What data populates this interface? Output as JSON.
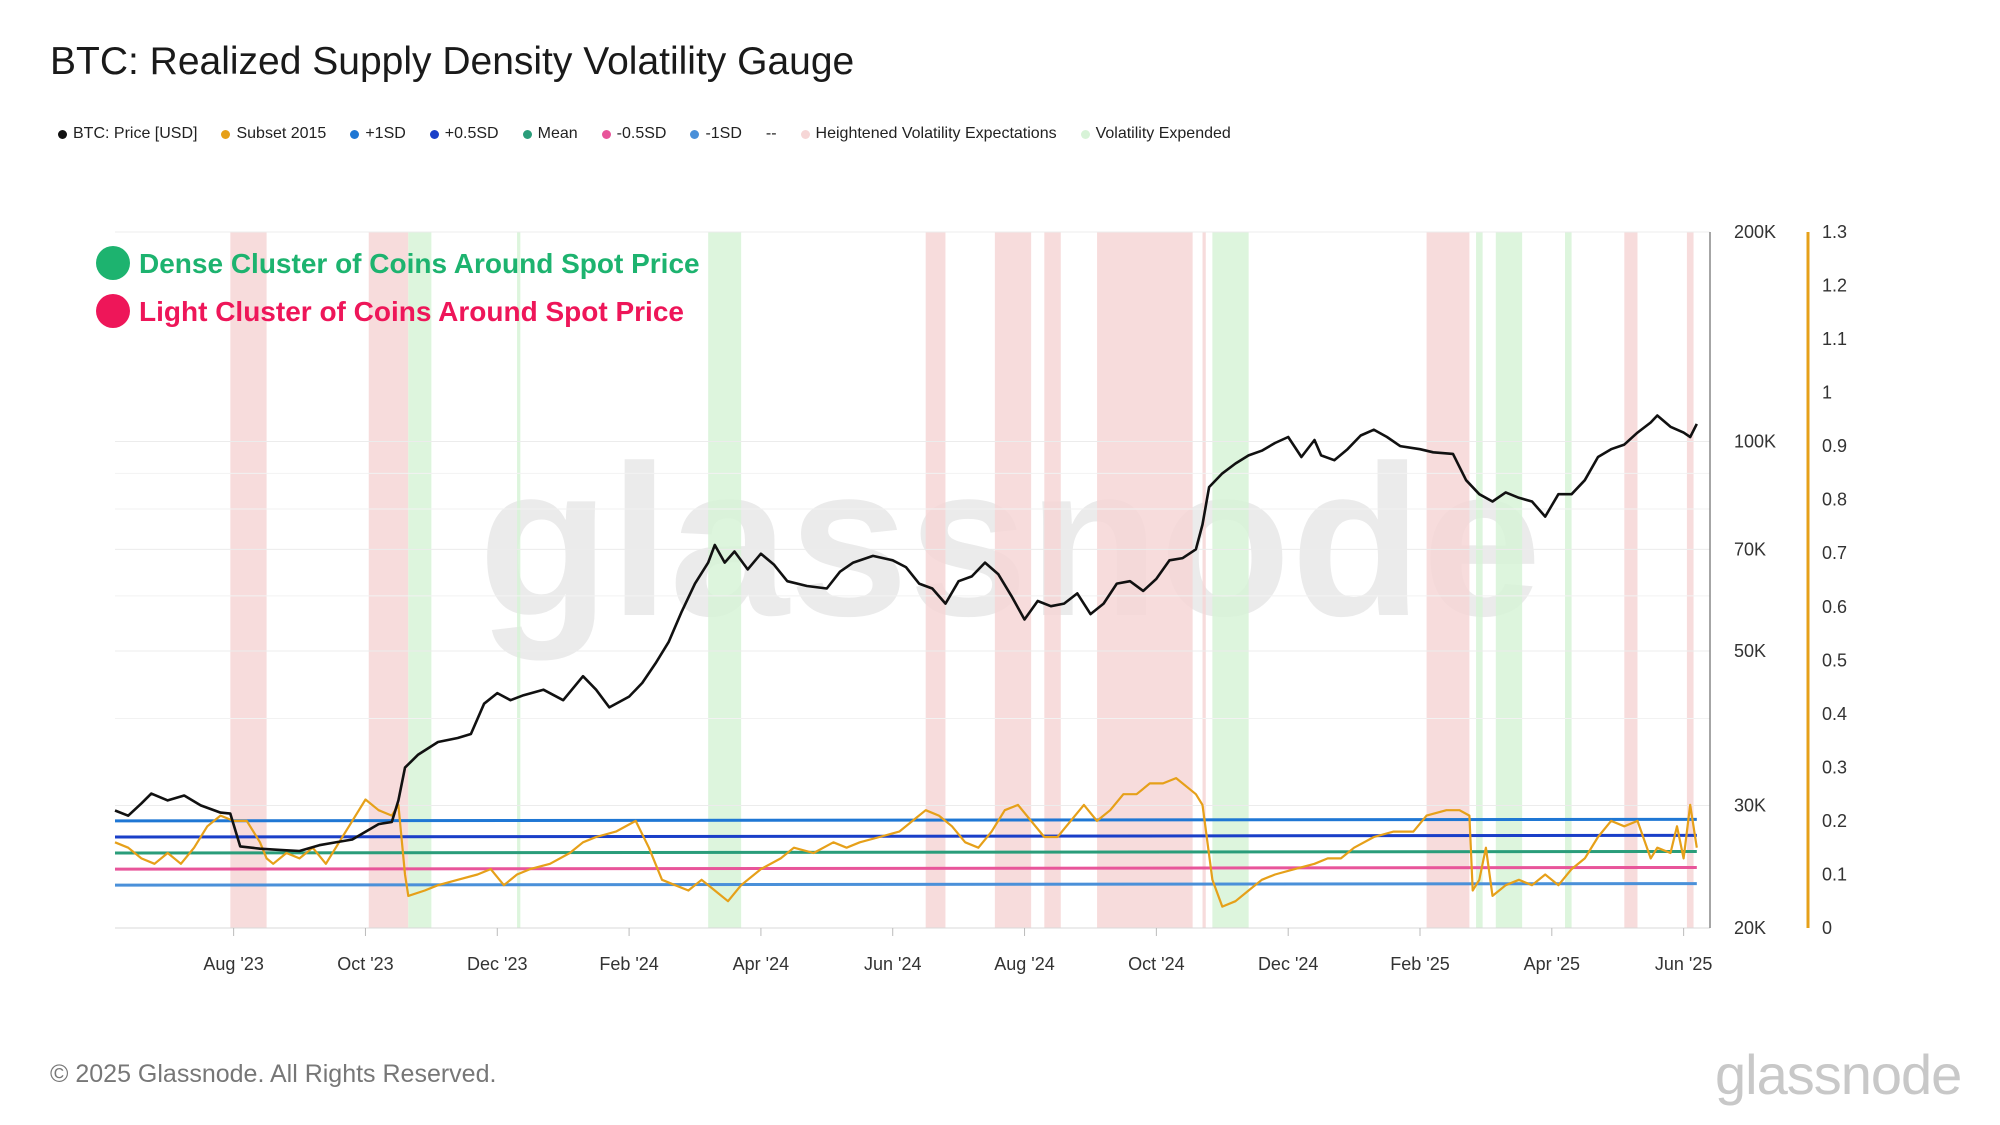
{
  "title": "BTC: Realized Supply Density Volatility Gauge",
  "legend": [
    {
      "label": "BTC: Price [USD]",
      "color": "#111111"
    },
    {
      "label": "Subset 2015",
      "color": "#e6a019"
    },
    {
      "label": "+1SD",
      "color": "#1f77d4"
    },
    {
      "label": "+0.5SD",
      "color": "#1a3fc8"
    },
    {
      "label": "Mean",
      "color": "#2a9d7a"
    },
    {
      "label": "-0.5SD",
      "color": "#e8559a"
    },
    {
      "label": "-1SD",
      "color": "#4a90d9"
    },
    {
      "label": "--",
      "color": ""
    },
    {
      "label": "Heightened Volatility Expectations",
      "color": "#f6d6d6"
    },
    {
      "label": "Volatility Expended",
      "color": "#d7f3d7"
    }
  ],
  "annotations": [
    {
      "text": "Dense Cluster of Coins Around Spot Price",
      "color": "#1db36f"
    },
    {
      "text": "Light Cluster of Coins Around Spot Price",
      "color": "#ee1659"
    }
  ],
  "footer": "© 2025 Glassnode. All Rights Reserved.",
  "brand": "glassnode",
  "watermark": "glassnode",
  "chart_data": {
    "type": "line",
    "x_ticks": [
      "Aug '23",
      "Oct '23",
      "Dec '23",
      "Feb '24",
      "Apr '24",
      "Jun '24",
      "Aug '24",
      "Oct '24",
      "Dec '24",
      "Feb '25",
      "Apr '25",
      "Jun '25"
    ],
    "x_tick_pos": [
      0.5,
      2.5,
      4.5,
      6.5,
      8.5,
      10.5,
      12.5,
      14.5,
      16.5,
      18.5,
      20.5,
      22.5
    ],
    "xlim": [
      -1.3,
      22.9
    ],
    "y_left": {
      "scale": "log",
      "min": 20000,
      "max": 200000,
      "ticks": [
        20000,
        30000,
        50000,
        70000,
        100000,
        200000
      ],
      "tick_labels": [
        "20K",
        "30K",
        "50K",
        "70K",
        "100K",
        "200K"
      ]
    },
    "y_right": {
      "min": 0,
      "max": 1.3,
      "ticks": [
        0,
        0.1,
        0.2,
        0.3,
        0.4,
        0.5,
        0.6,
        0.7,
        0.8,
        0.9,
        1,
        1.1,
        1.2,
        1.3
      ],
      "tick_labels": [
        "0",
        "0.1",
        "0.2",
        "0.3",
        "0.4",
        "0.5",
        "0.6",
        "0.7",
        "0.8",
        "0.9",
        "1",
        "1.1",
        "1.2",
        "1.3"
      ]
    },
    "sd_lines": [
      {
        "name": "+1SD",
        "y0": 0.2,
        "y1": 0.203,
        "color": "#1f77d4"
      },
      {
        "name": "+0.5SD",
        "y0": 0.17,
        "y1": 0.173,
        "color": "#1a3fc8"
      },
      {
        "name": "Mean",
        "y0": 0.14,
        "y1": 0.143,
        "color": "#2a9d7a"
      },
      {
        "name": "-0.5SD",
        "y0": 0.11,
        "y1": 0.113,
        "color": "#e8559a"
      },
      {
        "name": "-1SD",
        "y0": 0.08,
        "y1": 0.083,
        "color": "#4a90d9"
      }
    ],
    "bands": [
      {
        "kind": "heightened",
        "x0": 0.45,
        "x1": 1.0
      },
      {
        "kind": "heightened",
        "x0": 2.55,
        "x1": 3.15
      },
      {
        "kind": "expended",
        "x0": 3.15,
        "x1": 3.5
      },
      {
        "kind": "expended",
        "x0": 4.8,
        "x1": 4.85
      },
      {
        "kind": "expended",
        "x0": 7.7,
        "x1": 8.2
      },
      {
        "kind": "heightened",
        "x0": 11.0,
        "x1": 11.3
      },
      {
        "kind": "heightened",
        "x0": 12.05,
        "x1": 12.6
      },
      {
        "kind": "heightened",
        "x0": 12.8,
        "x1": 13.05
      },
      {
        "kind": "heightened",
        "x0": 13.6,
        "x1": 15.05
      },
      {
        "kind": "heightened",
        "x0": 15.2,
        "x1": 15.25
      },
      {
        "kind": "expended",
        "x0": 15.35,
        "x1": 15.9
      },
      {
        "kind": "heightened",
        "x0": 18.6,
        "x1": 19.25
      },
      {
        "kind": "expended",
        "x0": 19.35,
        "x1": 19.45
      },
      {
        "kind": "expended",
        "x0": 19.65,
        "x1": 20.05
      },
      {
        "kind": "expended",
        "x0": 20.7,
        "x1": 20.8
      },
      {
        "kind": "heightened",
        "x0": 21.6,
        "x1": 21.8
      },
      {
        "kind": "heightened",
        "x0": 22.55,
        "x1": 22.65
      }
    ],
    "band_colors": {
      "heightened": "#f6d6d6",
      "expended": "#d7f3d7"
    },
    "series": [
      {
        "name": "BTC: Price [USD]",
        "axis": "left",
        "color": "#111111",
        "points": [
          [
            -1.3,
            29500
          ],
          [
            -1.1,
            29000
          ],
          [
            -0.9,
            30200
          ],
          [
            -0.75,
            31200
          ],
          [
            -0.5,
            30500
          ],
          [
            -0.25,
            31000
          ],
          [
            0.0,
            30000
          ],
          [
            0.3,
            29300
          ],
          [
            0.45,
            29200
          ],
          [
            0.6,
            26200
          ],
          [
            0.9,
            26000
          ],
          [
            1.2,
            25900
          ],
          [
            1.5,
            25800
          ],
          [
            1.8,
            26300
          ],
          [
            2.0,
            26500
          ],
          [
            2.3,
            26800
          ],
          [
            2.5,
            27500
          ],
          [
            2.7,
            28200
          ],
          [
            2.9,
            28400
          ],
          [
            3.0,
            30500
          ],
          [
            3.1,
            34000
          ],
          [
            3.3,
            35500
          ],
          [
            3.6,
            37000
          ],
          [
            3.9,
            37500
          ],
          [
            4.1,
            38000
          ],
          [
            4.3,
            42000
          ],
          [
            4.5,
            43500
          ],
          [
            4.7,
            42500
          ],
          [
            4.9,
            43200
          ],
          [
            5.2,
            44000
          ],
          [
            5.5,
            42500
          ],
          [
            5.8,
            46000
          ],
          [
            6.0,
            44000
          ],
          [
            6.2,
            41500
          ],
          [
            6.5,
            43000
          ],
          [
            6.7,
            45000
          ],
          [
            6.9,
            48000
          ],
          [
            7.1,
            51500
          ],
          [
            7.3,
            57000
          ],
          [
            7.5,
            62500
          ],
          [
            7.7,
            67000
          ],
          [
            7.8,
            71000
          ],
          [
            7.95,
            67000
          ],
          [
            8.1,
            69500
          ],
          [
            8.3,
            65500
          ],
          [
            8.5,
            69000
          ],
          [
            8.7,
            66500
          ],
          [
            8.9,
            63000
          ],
          [
            9.2,
            62000
          ],
          [
            9.5,
            61500
          ],
          [
            9.7,
            65000
          ],
          [
            9.9,
            67000
          ],
          [
            10.2,
            68500
          ],
          [
            10.5,
            67500
          ],
          [
            10.7,
            66000
          ],
          [
            10.9,
            62500
          ],
          [
            11.1,
            61500
          ],
          [
            11.3,
            58500
          ],
          [
            11.5,
            63000
          ],
          [
            11.7,
            64000
          ],
          [
            11.9,
            67000
          ],
          [
            12.1,
            64500
          ],
          [
            12.3,
            60000
          ],
          [
            12.5,
            55500
          ],
          [
            12.7,
            59000
          ],
          [
            12.9,
            58000
          ],
          [
            13.1,
            58500
          ],
          [
            13.3,
            60500
          ],
          [
            13.5,
            56500
          ],
          [
            13.7,
            58500
          ],
          [
            13.9,
            62500
          ],
          [
            14.1,
            63000
          ],
          [
            14.3,
            61000
          ],
          [
            14.5,
            63500
          ],
          [
            14.7,
            67500
          ],
          [
            14.9,
            68000
          ],
          [
            15.1,
            70000
          ],
          [
            15.2,
            76000
          ],
          [
            15.3,
            86000
          ],
          [
            15.5,
            90000
          ],
          [
            15.7,
            93000
          ],
          [
            15.9,
            95500
          ],
          [
            16.1,
            97000
          ],
          [
            16.3,
            99500
          ],
          [
            16.5,
            101500
          ],
          [
            16.7,
            95000
          ],
          [
            16.9,
            100500
          ],
          [
            17.0,
            95500
          ],
          [
            17.2,
            94000
          ],
          [
            17.4,
            97500
          ],
          [
            17.6,
            102000
          ],
          [
            17.8,
            104000
          ],
          [
            18.0,
            101500
          ],
          [
            18.2,
            98500
          ],
          [
            18.5,
            97500
          ],
          [
            18.7,
            96500
          ],
          [
            19.0,
            96000
          ],
          [
            19.2,
            88000
          ],
          [
            19.4,
            84000
          ],
          [
            19.6,
            82000
          ],
          [
            19.8,
            84500
          ],
          [
            20.0,
            83000
          ],
          [
            20.2,
            82000
          ],
          [
            20.4,
            78000
          ],
          [
            20.6,
            84000
          ],
          [
            20.8,
            84000
          ],
          [
            21.0,
            88000
          ],
          [
            21.2,
            95000
          ],
          [
            21.4,
            97500
          ],
          [
            21.6,
            99000
          ],
          [
            21.8,
            103000
          ],
          [
            22.0,
            106500
          ],
          [
            22.1,
            109000
          ],
          [
            22.3,
            105000
          ],
          [
            22.5,
            103000
          ],
          [
            22.6,
            101500
          ],
          [
            22.7,
            106000
          ]
        ]
      },
      {
        "name": "Subset 2015",
        "axis": "right",
        "color": "#e6a019",
        "points": [
          [
            -1.3,
            0.16
          ],
          [
            -1.1,
            0.15
          ],
          [
            -0.9,
            0.13
          ],
          [
            -0.7,
            0.12
          ],
          [
            -0.5,
            0.14
          ],
          [
            -0.3,
            0.12
          ],
          [
            -0.1,
            0.15
          ],
          [
            0.1,
            0.19
          ],
          [
            0.3,
            0.21
          ],
          [
            0.5,
            0.2
          ],
          [
            0.7,
            0.2
          ],
          [
            0.9,
            0.16
          ],
          [
            1.0,
            0.13
          ],
          [
            1.1,
            0.12
          ],
          [
            1.3,
            0.14
          ],
          [
            1.5,
            0.13
          ],
          [
            1.7,
            0.15
          ],
          [
            1.9,
            0.12
          ],
          [
            2.1,
            0.16
          ],
          [
            2.3,
            0.2
          ],
          [
            2.5,
            0.24
          ],
          [
            2.7,
            0.22
          ],
          [
            2.9,
            0.21
          ],
          [
            3.0,
            0.23
          ],
          [
            3.1,
            0.1
          ],
          [
            3.15,
            0.06
          ],
          [
            3.4,
            0.07
          ],
          [
            3.6,
            0.08
          ],
          [
            3.9,
            0.09
          ],
          [
            4.2,
            0.1
          ],
          [
            4.4,
            0.11
          ],
          [
            4.6,
            0.08
          ],
          [
            4.8,
            0.1
          ],
          [
            5.0,
            0.11
          ],
          [
            5.3,
            0.12
          ],
          [
            5.6,
            0.14
          ],
          [
            5.8,
            0.16
          ],
          [
            6.0,
            0.17
          ],
          [
            6.3,
            0.18
          ],
          [
            6.6,
            0.2
          ],
          [
            6.8,
            0.15
          ],
          [
            7.0,
            0.09
          ],
          [
            7.2,
            0.08
          ],
          [
            7.4,
            0.07
          ],
          [
            7.6,
            0.09
          ],
          [
            7.8,
            0.07
          ],
          [
            8.0,
            0.05
          ],
          [
            8.2,
            0.08
          ],
          [
            8.5,
            0.11
          ],
          [
            8.8,
            0.13
          ],
          [
            9.0,
            0.15
          ],
          [
            9.3,
            0.14
          ],
          [
            9.6,
            0.16
          ],
          [
            9.8,
            0.15
          ],
          [
            10.0,
            0.16
          ],
          [
            10.3,
            0.17
          ],
          [
            10.6,
            0.18
          ],
          [
            10.8,
            0.2
          ],
          [
            11.0,
            0.22
          ],
          [
            11.2,
            0.21
          ],
          [
            11.4,
            0.19
          ],
          [
            11.6,
            0.16
          ],
          [
            11.8,
            0.15
          ],
          [
            12.0,
            0.18
          ],
          [
            12.2,
            0.22
          ],
          [
            12.4,
            0.23
          ],
          [
            12.6,
            0.2
          ],
          [
            12.8,
            0.17
          ],
          [
            13.0,
            0.17
          ],
          [
            13.2,
            0.2
          ],
          [
            13.4,
            0.23
          ],
          [
            13.6,
            0.2
          ],
          [
            13.8,
            0.22
          ],
          [
            14.0,
            0.25
          ],
          [
            14.2,
            0.25
          ],
          [
            14.4,
            0.27
          ],
          [
            14.6,
            0.27
          ],
          [
            14.8,
            0.28
          ],
          [
            15.0,
            0.26
          ],
          [
            15.1,
            0.25
          ],
          [
            15.2,
            0.23
          ],
          [
            15.35,
            0.09
          ],
          [
            15.5,
            0.04
          ],
          [
            15.7,
            0.05
          ],
          [
            15.9,
            0.07
          ],
          [
            16.1,
            0.09
          ],
          [
            16.3,
            0.1
          ],
          [
            16.6,
            0.11
          ],
          [
            16.9,
            0.12
          ],
          [
            17.1,
            0.13
          ],
          [
            17.3,
            0.13
          ],
          [
            17.5,
            0.15
          ],
          [
            17.8,
            0.17
          ],
          [
            18.1,
            0.18
          ],
          [
            18.4,
            0.18
          ],
          [
            18.6,
            0.21
          ],
          [
            18.9,
            0.22
          ],
          [
            19.1,
            0.22
          ],
          [
            19.25,
            0.21
          ],
          [
            19.3,
            0.07
          ],
          [
            19.4,
            0.09
          ],
          [
            19.5,
            0.15
          ],
          [
            19.6,
            0.06
          ],
          [
            19.8,
            0.08
          ],
          [
            20.0,
            0.09
          ],
          [
            20.2,
            0.08
          ],
          [
            20.4,
            0.1
          ],
          [
            20.6,
            0.08
          ],
          [
            20.8,
            0.11
          ],
          [
            21.0,
            0.13
          ],
          [
            21.2,
            0.17
          ],
          [
            21.4,
            0.2
          ],
          [
            21.6,
            0.19
          ],
          [
            21.8,
            0.2
          ],
          [
            22.0,
            0.13
          ],
          [
            22.1,
            0.15
          ],
          [
            22.3,
            0.14
          ],
          [
            22.4,
            0.19
          ],
          [
            22.5,
            0.13
          ],
          [
            22.6,
            0.23
          ],
          [
            22.7,
            0.15
          ]
        ]
      }
    ]
  }
}
